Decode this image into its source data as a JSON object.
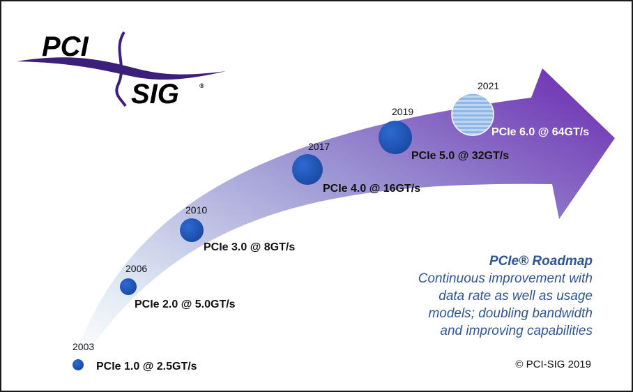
{
  "logo": {
    "top_text": "PCI",
    "bottom_text": "SIG",
    "reg": "®"
  },
  "milestones": [
    {
      "year": "2003",
      "label": "PCIe 1.0 @ 2.5GT/s"
    },
    {
      "year": "2006",
      "label": "PCIe 2.0 @ 5.0GT/s"
    },
    {
      "year": "2010",
      "label": "PCIe 3.0 @ 8GT/s"
    },
    {
      "year": "2017",
      "label": "PCIe 4.0 @ 16GT/s"
    },
    {
      "year": "2019",
      "label": "PCIe 5.0 @ 32GT/s"
    },
    {
      "year": "2021",
      "label": "PCIe 6.0 @ 64GT/s"
    }
  ],
  "panel": {
    "title": "PCIe® Roadmap",
    "lines": [
      "Continuous improvement with",
      "data rate as well as usage",
      "models; doubling bandwidth",
      "and improving capabilities"
    ]
  },
  "copyright": "© PCI-SIG 2019",
  "colors": {
    "arrow_start": "#dde7f3",
    "arrow_mid": "#8f86c9",
    "arrow_end": "#6c2bb3",
    "dot": "#1f56b8",
    "future_dot": "#a9c9ec",
    "panel_text": "#2f5597",
    "logo_swoosh": "#3b1f7a"
  }
}
